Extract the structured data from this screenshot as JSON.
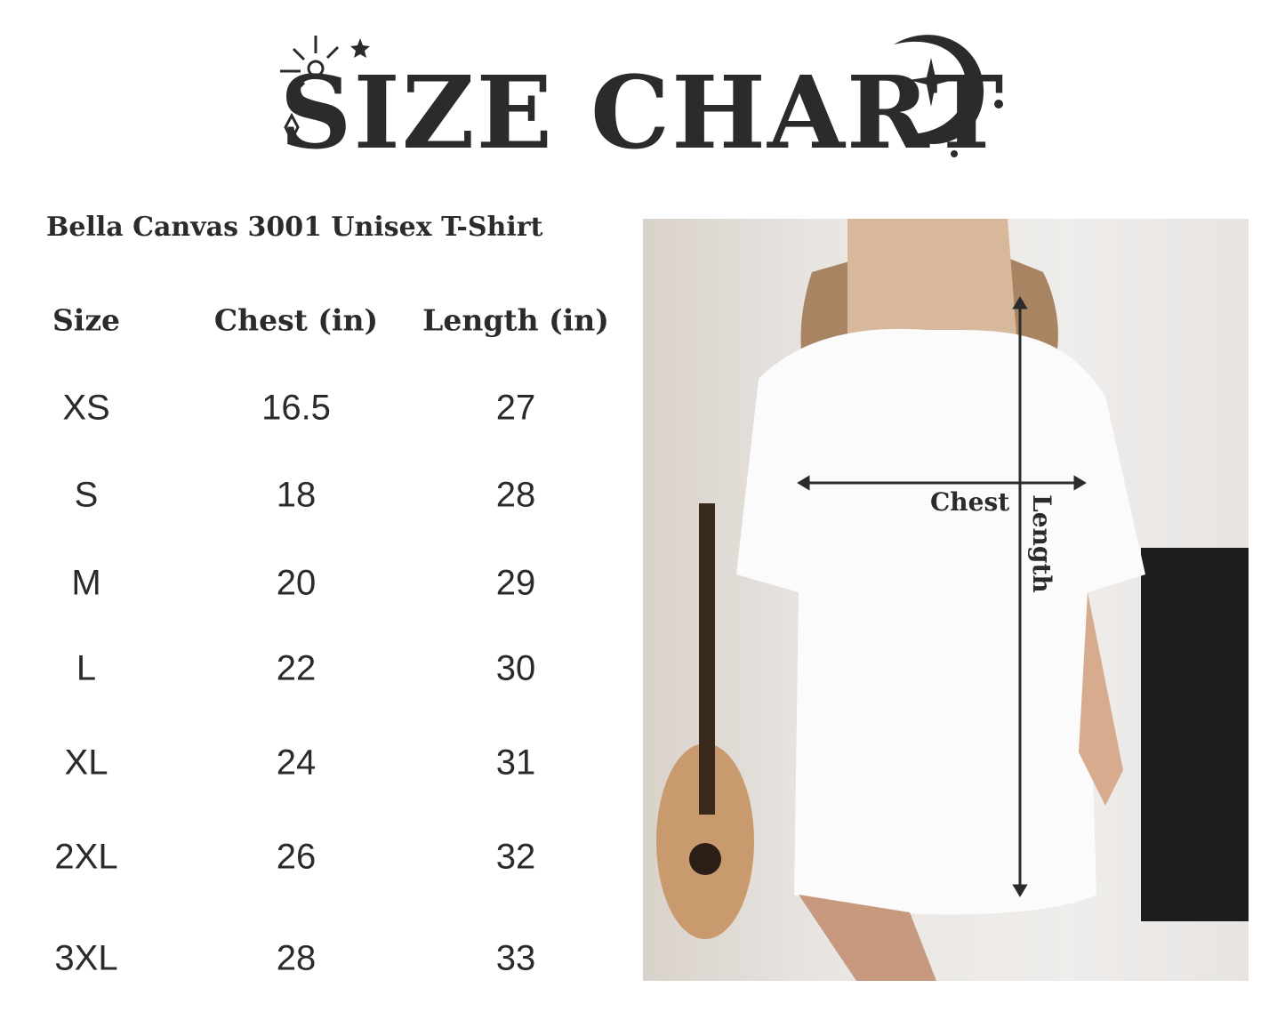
{
  "title": "SIZE CHART",
  "subtitle": "Bella Canvas 3001 Unisex T-Shirt",
  "table": {
    "headers": [
      "Size",
      "Chest (in)",
      "Length (in)"
    ],
    "rows": [
      [
        "XS",
        "16.5",
        "27"
      ],
      [
        "S",
        "18",
        "28"
      ],
      [
        "M",
        "20",
        "29"
      ],
      [
        "L",
        "22",
        "30"
      ],
      [
        "XL",
        "24",
        "31"
      ],
      [
        "2XL",
        "26",
        "32"
      ],
      [
        "3XL",
        "28",
        "33"
      ]
    ]
  },
  "photo": {
    "chest_label": "Chest",
    "length_label": "Length"
  },
  "colors": {
    "text": "#2b2b2b",
    "background": "#ffffff"
  }
}
